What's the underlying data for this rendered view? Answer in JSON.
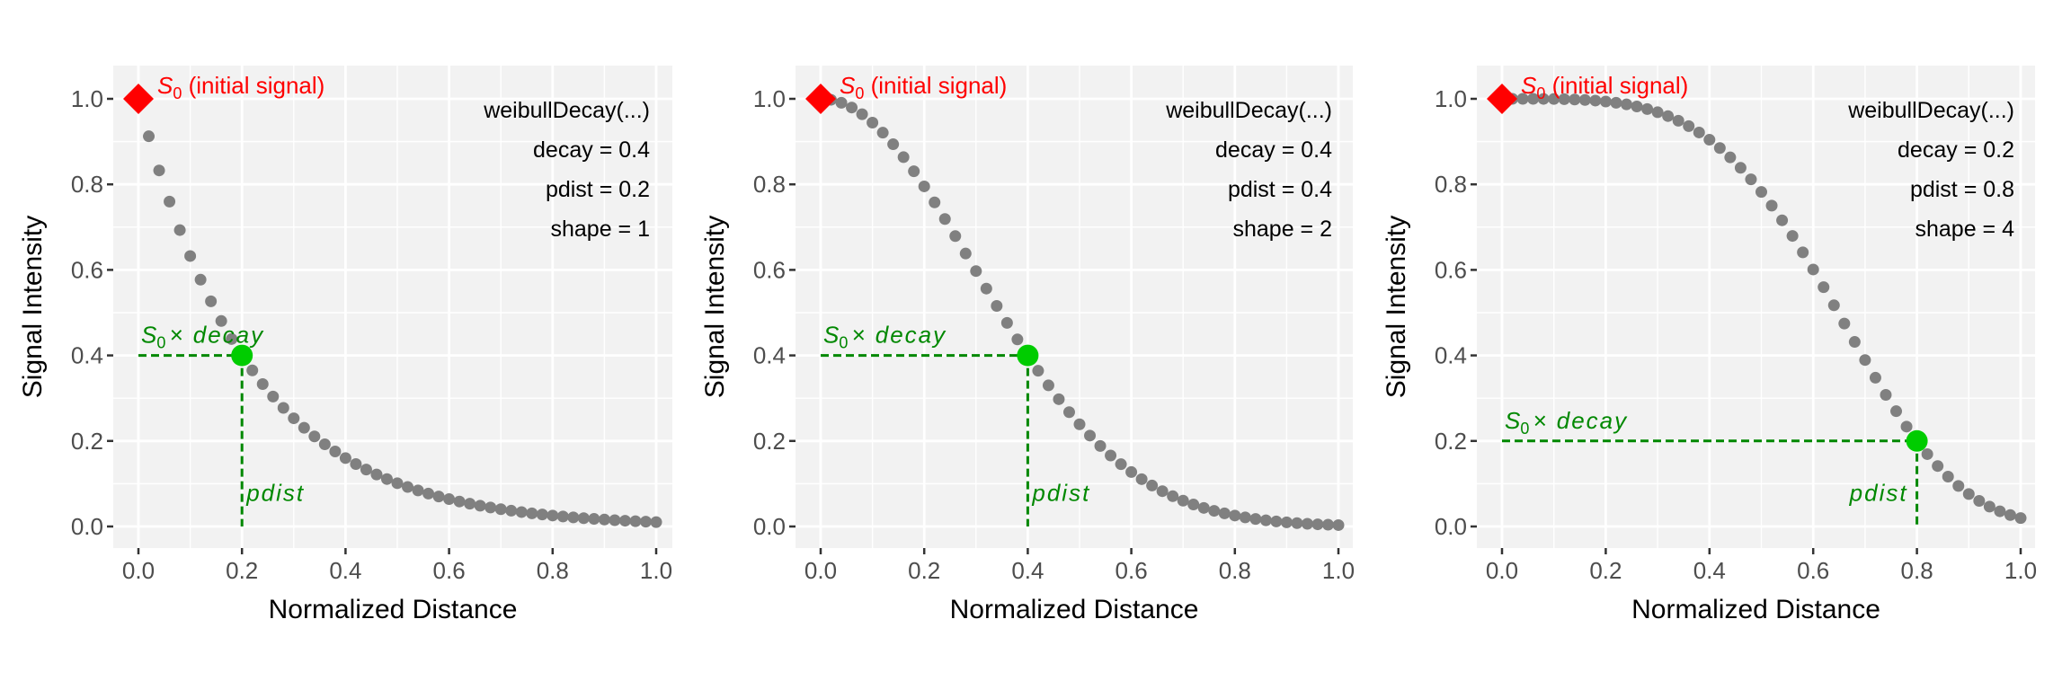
{
  "chart_data": [
    {
      "type": "scatter",
      "xlabel": "Normalized Distance",
      "ylabel": "Signal Intensity",
      "xlim": [
        0,
        1
      ],
      "ylim": [
        0,
        1
      ],
      "x_ticks": [
        "0.0",
        "0.2",
        "0.4",
        "0.6",
        "0.8",
        "1.0"
      ],
      "y_ticks": [
        "0.0",
        "0.2",
        "0.4",
        "0.6",
        "0.8",
        "1.0"
      ],
      "grid": true,
      "params": {
        "decay": 0.4,
        "pdist": 0.2,
        "shape": 1
      },
      "annotation_lines": [
        "weibullDecay(...)",
        "decay = 0.4",
        "pdist = 0.2",
        "shape = 1"
      ],
      "s0_label": {
        "symbol": "S",
        "subscript": "0",
        "text": " (initial signal)"
      },
      "decay_label": {
        "symbol": "S",
        "subscript": "0",
        "text": "× decay"
      },
      "pdist_label": "pdist"
    },
    {
      "type": "scatter",
      "xlabel": "Normalized Distance",
      "ylabel": "Signal Intensity",
      "xlim": [
        0,
        1
      ],
      "ylim": [
        0,
        1
      ],
      "x_ticks": [
        "0.0",
        "0.2",
        "0.4",
        "0.6",
        "0.8",
        "1.0"
      ],
      "y_ticks": [
        "0.0",
        "0.2",
        "0.4",
        "0.6",
        "0.8",
        "1.0"
      ],
      "grid": true,
      "params": {
        "decay": 0.4,
        "pdist": 0.4,
        "shape": 2
      },
      "annotation_lines": [
        "weibullDecay(...)",
        "decay = 0.4",
        "pdist = 0.4",
        "shape = 2"
      ],
      "s0_label": {
        "symbol": "S",
        "subscript": "0",
        "text": " (initial signal)"
      },
      "decay_label": {
        "symbol": "S",
        "subscript": "0",
        "text": "× decay"
      },
      "pdist_label": "pdist"
    },
    {
      "type": "scatter",
      "xlabel": "Normalized Distance",
      "ylabel": "Signal Intensity",
      "xlim": [
        0,
        1
      ],
      "ylim": [
        0,
        1
      ],
      "x_ticks": [
        "0.0",
        "0.2",
        "0.4",
        "0.6",
        "0.8",
        "1.0"
      ],
      "y_ticks": [
        "0.0",
        "0.2",
        "0.4",
        "0.6",
        "0.8",
        "1.0"
      ],
      "grid": true,
      "params": {
        "decay": 0.2,
        "pdist": 0.8,
        "shape": 4
      },
      "annotation_lines": [
        "weibullDecay(...)",
        "decay = 0.2",
        "pdist = 0.8",
        "shape = 4"
      ],
      "s0_label": {
        "symbol": "S",
        "subscript": "0",
        "text": " (initial signal)"
      },
      "decay_label": {
        "symbol": "S",
        "subscript": "0",
        "text": "× decay"
      },
      "pdist_label": "pdist"
    }
  ],
  "colors": {
    "panel_bg": "#f2f2f2",
    "grid": "#ffffff",
    "points": "#808080",
    "initial_signal": "#ff0000",
    "decay_point": "#00cc00",
    "guide": "#008800",
    "tick_text": "#4d4d4d"
  },
  "x_step": 0.02
}
